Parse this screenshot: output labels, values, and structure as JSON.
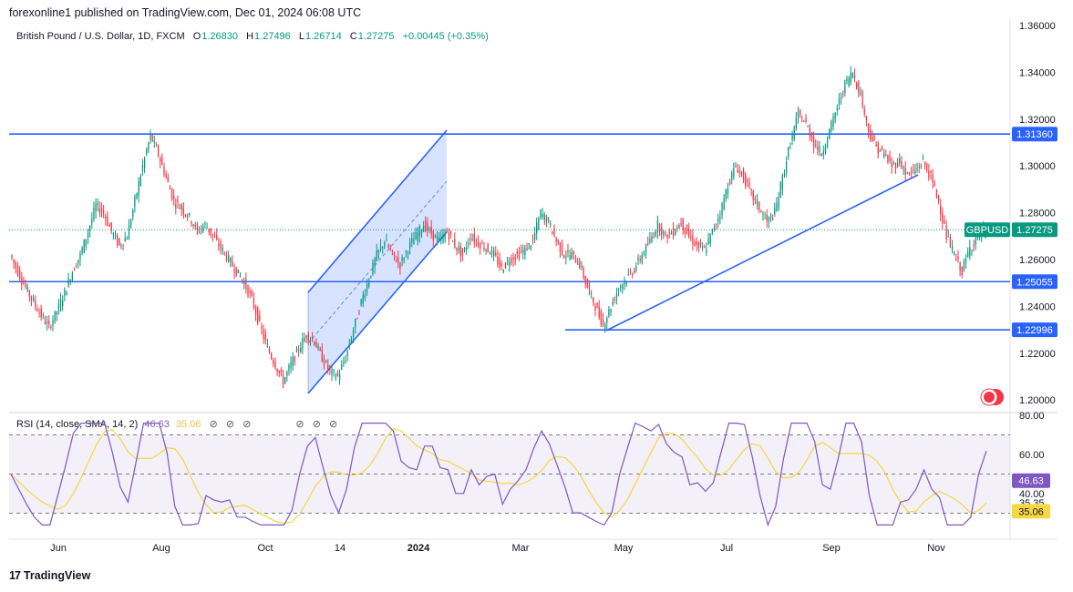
{
  "header": {
    "publisher": "forexonline1 published on TradingView.com, Dec 01, 2024 06:08 UTC"
  },
  "legend": {
    "symbol": "British Pound / U.S. Dollar, 1D, FXCM",
    "open": "1.26830",
    "high": "1.27496",
    "low": "1.26714",
    "close": "1.27275",
    "change": "+0.00445 (+0.35%)"
  },
  "rsi_legend": {
    "label": "RSI (14, close, SMA, 14, 2)",
    "rsi_value": "46.63",
    "sma_value": "35.06"
  },
  "footer": {
    "brand": "TradingView"
  },
  "colors": {
    "up": "#089981",
    "down": "#f23645",
    "level": "#2962ff",
    "rsi": "#7e57c2",
    "rsi_sma": "#f5d742"
  },
  "chart_data": [
    {
      "type": "candlestick",
      "symbol": "GBPUSD",
      "y_axis_ticks": [
        "1.36000",
        "1.34000",
        "1.32000",
        "1.30000",
        "1.28000",
        "1.26000",
        "1.24000",
        "1.22000",
        "1.20000"
      ],
      "ylim": [
        1.195,
        1.36
      ],
      "x_axis_ticks": [
        "Jun",
        "Aug",
        "Oct",
        "14",
        "2024",
        "Mar",
        "May",
        "Jul",
        "Sep",
        "Nov"
      ],
      "horizontal_levels": [
        {
          "price": 1.3136,
          "label": "1.31360"
        },
        {
          "price": 1.25055,
          "label": "1.25055"
        },
        {
          "price": 1.22996,
          "label": "1.22996"
        }
      ],
      "price_tag": {
        "symbol_label": "GBPUSD",
        "value_label": "1.27275",
        "price": 1.27275
      },
      "series_close": [
        1.262,
        1.255,
        1.248,
        1.242,
        1.236,
        1.231,
        1.238,
        1.246,
        1.255,
        1.262,
        1.272,
        1.283,
        1.28,
        1.272,
        1.266,
        1.27,
        1.285,
        1.3,
        1.313,
        1.305,
        1.295,
        1.285,
        1.282,
        1.278,
        1.272,
        1.275,
        1.27,
        1.265,
        1.26,
        1.255,
        1.25,
        1.243,
        1.232,
        1.222,
        1.215,
        1.208,
        1.215,
        1.222,
        1.228,
        1.225,
        1.218,
        1.212,
        1.21,
        1.218,
        1.23,
        1.242,
        1.252,
        1.262,
        1.268,
        1.262,
        1.258,
        1.265,
        1.27,
        1.275,
        1.271,
        1.268,
        1.272,
        1.266,
        1.262,
        1.27,
        1.267,
        1.265,
        1.262,
        1.256,
        1.26,
        1.262,
        1.264,
        1.268,
        1.28,
        1.276,
        1.268,
        1.262,
        1.262,
        1.258,
        1.248,
        1.24,
        1.232,
        1.24,
        1.248,
        1.252,
        1.256,
        1.262,
        1.268,
        1.275,
        1.27,
        1.272,
        1.276,
        1.27,
        1.266,
        1.264,
        1.272,
        1.28,
        1.292,
        1.3,
        1.295,
        1.288,
        1.282,
        1.276,
        1.28,
        1.295,
        1.31,
        1.322,
        1.318,
        1.31,
        1.305,
        1.315,
        1.325,
        1.335,
        1.34,
        1.33,
        1.315,
        1.308,
        1.305,
        1.3,
        1.302,
        1.296,
        1.298,
        1.302,
        1.295,
        1.285,
        1.27,
        1.262,
        1.255,
        1.265,
        1.27,
        1.27275
      ],
      "rsi": {
        "ylim": [
          20,
          80
        ],
        "ticks": [
          "80.00",
          "60.00",
          "40.00"
        ],
        "band": [
          30,
          70
        ],
        "labels": [
          "46.63",
          "35.35",
          "35.06"
        ]
      }
    }
  ]
}
